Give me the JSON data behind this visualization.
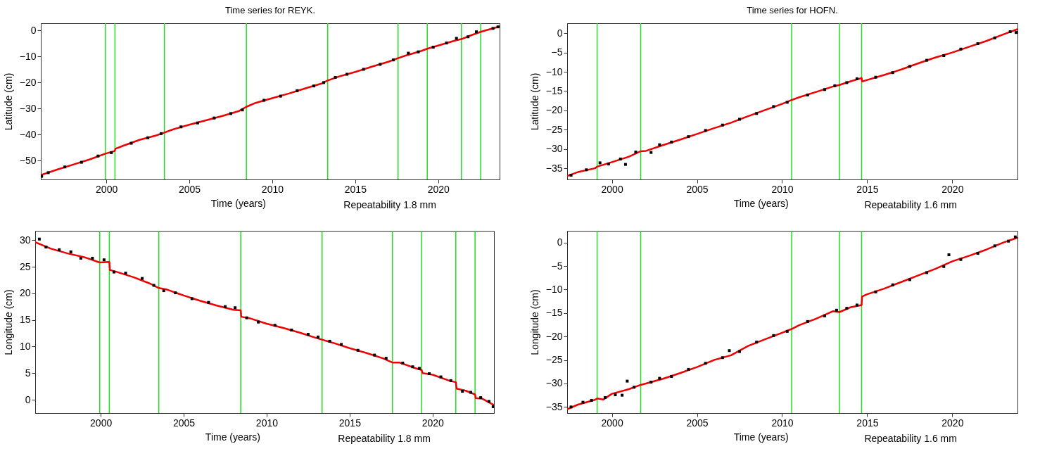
{
  "chart_data": [
    {
      "type": "scatter",
      "title": "Time series for REYK.",
      "xlabel": "Time (years)",
      "ylabel": "Latitude (cm)",
      "annotations": [
        "Repeatability 1.8 mm"
      ],
      "line_style": "solid",
      "xlim": [
        1996.05,
        2023.7
      ],
      "xticks": [
        2000,
        2005,
        2010,
        2015,
        2020
      ],
      "ylim": [
        -57.2,
        2.8
      ],
      "yticks": [
        -50,
        -40,
        -30,
        -20,
        -10,
        0
      ],
      "ref_lines": [
        {
          "axis": "x",
          "value": 1999.94,
          "color": "#22dd22"
        },
        {
          "axis": "x",
          "value": 2000.52,
          "color": "#22dd22"
        },
        {
          "axis": "x",
          "value": 2003.5,
          "color": "#22dd22"
        },
        {
          "axis": "x",
          "value": 2008.44,
          "color": "#22dd22"
        },
        {
          "axis": "x",
          "value": 2013.34,
          "color": "#22dd22"
        },
        {
          "axis": "x",
          "value": 2017.58,
          "color": "#22dd22"
        },
        {
          "axis": "x",
          "value": 2019.34,
          "color": "#22dd22"
        },
        {
          "axis": "x",
          "value": 2021.4,
          "color": "#22dd22"
        },
        {
          "axis": "x",
          "value": 2022.56,
          "color": "#22dd22"
        }
      ],
      "series": [
        {
          "type": "scatter",
          "marker": "square",
          "color": "#000000",
          "x": [
            1996.1,
            1996.5,
            1997.5,
            1998.5,
            1999.5,
            2000.3,
            2001.5,
            2002.5,
            2003.3,
            2004.5,
            2005.5,
            2006.5,
            2007.5,
            2008.2,
            2009.5,
            2010.5,
            2011.5,
            2012.5,
            2013.1,
            2013.8,
            2014.5,
            2015.5,
            2016.5,
            2017.3,
            2018.2,
            2018.8,
            2019.7,
            2020.5,
            2021.1,
            2021.8,
            2022.3,
            2023.3,
            2023.6
          ],
          "values": [
            -56.0,
            -54.6,
            -52.4,
            -50.6,
            -48.2,
            -46.9,
            -43.3,
            -41.2,
            -39.6,
            -37.0,
            -35.5,
            -33.6,
            -31.9,
            -30.5,
            -26.8,
            -25.2,
            -23.1,
            -21.3,
            -20.0,
            -18.0,
            -16.8,
            -14.9,
            -13.0,
            -11.3,
            -8.7,
            -8.2,
            -6.4,
            -4.8,
            -3.0,
            -2.4,
            -0.5,
            0.8,
            1.4
          ]
        },
        {
          "type": "line",
          "color": "#ee0000",
          "x": [
            1996.05,
            1997,
            1998,
            1999,
            1999.94,
            2000.5,
            2000.55,
            2001,
            2002,
            2003,
            2003.5,
            2004,
            2005,
            2006,
            2007,
            2008,
            2008.44,
            2009,
            2010,
            2011,
            2012,
            2013,
            2013.34,
            2014,
            2015,
            2016,
            2017,
            2017.58,
            2018,
            2019,
            2019.34,
            2020,
            2021,
            2021.4,
            2022,
            2022.56,
            2023,
            2023.7
          ],
          "values": [
            -55.5,
            -53.5,
            -51.5,
            -49.5,
            -47.3,
            -46.3,
            -45.4,
            -44.3,
            -42.0,
            -40.3,
            -39.2,
            -38.0,
            -36.2,
            -34.5,
            -32.8,
            -30.9,
            -29.3,
            -27.8,
            -26.0,
            -24.2,
            -22.2,
            -20.3,
            -19.2,
            -17.7,
            -15.9,
            -13.9,
            -12.0,
            -10.6,
            -9.7,
            -7.8,
            -7.0,
            -5.8,
            -3.9,
            -3.3,
            -1.8,
            -0.5,
            0.3,
            1.5
          ]
        }
      ]
    },
    {
      "type": "scatter",
      "title": "Time series for HOFN.",
      "xlabel": "Time (years)",
      "ylabel": "Latitude (cm)",
      "annotations": [
        "Repeatability 1.6 mm"
      ],
      "line_style": "solid",
      "xlim": [
        1997.37,
        2023.83
      ],
      "xticks": [
        2000,
        2005,
        2010,
        2015,
        2020
      ],
      "ylim": [
        -37.9,
        2.6
      ],
      "yticks": [
        -35,
        -30,
        -25,
        -20,
        -15,
        -10,
        -5,
        0
      ],
      "ref_lines": [
        {
          "axis": "x",
          "value": 1999.13,
          "color": "#22dd22"
        },
        {
          "axis": "x",
          "value": 2001.69,
          "color": "#22dd22"
        },
        {
          "axis": "x",
          "value": 2010.56,
          "color": "#22dd22"
        },
        {
          "axis": "x",
          "value": 2013.37,
          "color": "#22dd22"
        },
        {
          "axis": "x",
          "value": 2014.67,
          "color": "#22dd22"
        }
      ],
      "series": [
        {
          "type": "scatter",
          "marker": "square",
          "color": "#000000",
          "x": [
            1997.6,
            1998.5,
            1999.3,
            1999.8,
            2000.5,
            2000.8,
            2001.4,
            2002.3,
            2002.8,
            2003.5,
            2004.5,
            2005.5,
            2006.5,
            2007.5,
            2008.5,
            2009.5,
            2010.3,
            2011.5,
            2012.5,
            2013.1,
            2013.8,
            2014.4,
            2015.5,
            2016.5,
            2017.5,
            2018.5,
            2019.5,
            2020.5,
            2021.5,
            2022.5,
            2023.4,
            2023.75
          ],
          "values": [
            -36.8,
            -35.4,
            -33.6,
            -33.9,
            -32.6,
            -34.0,
            -30.8,
            -30.9,
            -28.9,
            -28.2,
            -26.8,
            -25.2,
            -23.8,
            -22.3,
            -20.8,
            -19.0,
            -17.9,
            -16.0,
            -14.6,
            -13.6,
            -12.8,
            -11.8,
            -11.4,
            -10.2,
            -8.6,
            -7.0,
            -5.8,
            -4.1,
            -2.7,
            -1.2,
            0.4,
            0.2
          ]
        },
        {
          "type": "line",
          "color": "#ee0000",
          "x": [
            1997.37,
            1998,
            1999,
            1999.13,
            2000,
            2001,
            2001.69,
            2002,
            2003,
            2004,
            2005,
            2006,
            2007,
            2008,
            2009,
            2010,
            2010.56,
            2011,
            2012,
            2013,
            2013.37,
            2014,
            2014.67,
            2014.7,
            2015,
            2016,
            2017,
            2018,
            2019,
            2020,
            2021,
            2022,
            2023,
            2023.8
          ],
          "values": [
            -37.0,
            -36.0,
            -35.0,
            -34.6,
            -33.4,
            -32.0,
            -30.6,
            -30.5,
            -29.0,
            -27.6,
            -26.1,
            -24.6,
            -23.2,
            -21.5,
            -19.9,
            -18.3,
            -17.3,
            -16.6,
            -15.2,
            -13.8,
            -13.4,
            -12.5,
            -11.6,
            -12.5,
            -12.1,
            -10.8,
            -9.4,
            -7.8,
            -6.3,
            -5.0,
            -3.5,
            -2.0,
            -0.3,
            1.0
          ]
        }
      ]
    },
    {
      "type": "scatter",
      "xlabel": "Time (years)",
      "ylabel": "Longitude (cm)",
      "annotations": [
        "Repeatability 1.8 mm"
      ],
      "line_style": "solid",
      "xlim": [
        1996.05,
        2023.7
      ],
      "xticks": [
        2000,
        2005,
        2010,
        2015,
        2020
      ],
      "ylim": [
        -2.5,
        31.75
      ],
      "yticks": [
        0,
        5,
        10,
        15,
        20,
        25,
        30
      ],
      "ref_lines": [
        {
          "axis": "x",
          "value": 1999.94,
          "color": "#22dd22"
        },
        {
          "axis": "x",
          "value": 2000.52,
          "color": "#22dd22"
        },
        {
          "axis": "x",
          "value": 2003.5,
          "color": "#22dd22"
        },
        {
          "axis": "x",
          "value": 2008.44,
          "color": "#22dd22"
        },
        {
          "axis": "x",
          "value": 2013.34,
          "color": "#22dd22"
        },
        {
          "axis": "x",
          "value": 2017.58,
          "color": "#22dd22"
        },
        {
          "axis": "x",
          "value": 2019.34,
          "color": "#22dd22"
        },
        {
          "axis": "x",
          "value": 2021.4,
          "color": "#22dd22"
        },
        {
          "axis": "x",
          "value": 2022.56,
          "color": "#22dd22"
        }
      ],
      "series": [
        {
          "type": "scatter",
          "marker": "square",
          "color": "#000000",
          "x": [
            1996.3,
            1996.7,
            1997.5,
            1998.2,
            1998.8,
            1999.5,
            2000.2,
            2000.8,
            2001.5,
            2002.5,
            2003.2,
            2003.8,
            2004.5,
            2005.5,
            2006.5,
            2007.5,
            2008.1,
            2008.8,
            2009.5,
            2010.5,
            2011.5,
            2012.5,
            2013.1,
            2013.8,
            2014.5,
            2015.5,
            2016.5,
            2017.2,
            2018.2,
            2018.8,
            2019.2,
            2019.8,
            2020.5,
            2021.1,
            2021.8,
            2022.3,
            2022.9,
            2023.4,
            2023.65
          ],
          "values": [
            30.2,
            28.7,
            28.2,
            27.8,
            26.6,
            26.6,
            26.3,
            24.0,
            23.8,
            22.8,
            21.5,
            20.5,
            20.1,
            19.0,
            18.3,
            17.5,
            17.3,
            15.4,
            14.6,
            14.0,
            13.1,
            12.3,
            11.8,
            11.0,
            10.4,
            9.3,
            8.4,
            7.8,
            6.9,
            6.2,
            5.9,
            4.9,
            4.3,
            3.6,
            1.6,
            1.4,
            0.4,
            -0.3,
            -1.3
          ]
        },
        {
          "type": "line",
          "color": "#ee0000",
          "x": [
            1996.05,
            1997,
            1998,
            1999,
            1999.94,
            2000.52,
            2000.55,
            2001,
            2002,
            2003,
            2003.5,
            2004,
            2005,
            2006,
            2007,
            2008,
            2008.44,
            2008.47,
            2009,
            2010,
            2011,
            2012,
            2013,
            2013.34,
            2014,
            2015,
            2016,
            2017,
            2017.58,
            2018,
            2019,
            2019.34,
            2019.4,
            2020,
            2021,
            2021.4,
            2021.45,
            2022,
            2022.56,
            2022.6,
            2023,
            2023.7
          ],
          "values": [
            29.6,
            28.4,
            27.5,
            26.8,
            25.8,
            25.9,
            24.4,
            24.0,
            23.0,
            21.8,
            21.0,
            20.7,
            19.6,
            18.6,
            17.7,
            16.9,
            16.8,
            15.6,
            15.3,
            14.3,
            13.5,
            12.6,
            11.6,
            11.3,
            10.7,
            9.7,
            8.8,
            7.8,
            7.0,
            7.0,
            5.9,
            5.6,
            5.0,
            4.7,
            3.6,
            3.3,
            2.1,
            1.7,
            1.0,
            0.3,
            0.2,
            -1.0
          ]
        }
      ]
    },
    {
      "type": "scatter",
      "xlabel": "Time (years)",
      "ylabel": "Longitude (cm)",
      "annotations": [
        "Repeatability 1.6 mm"
      ],
      "line_style": "solid",
      "xlim": [
        1997.37,
        2023.83
      ],
      "xticks": [
        2000,
        2005,
        2010,
        2015,
        2020
      ],
      "ylim": [
        -36.3,
        2.5
      ],
      "yticks": [
        -35,
        -30,
        -25,
        -20,
        -15,
        -10,
        -5,
        0
      ],
      "ref_lines": [
        {
          "axis": "x",
          "value": 1999.13,
          "color": "#22dd22"
        },
        {
          "axis": "x",
          "value": 2001.69,
          "color": "#22dd22"
        },
        {
          "axis": "x",
          "value": 2010.56,
          "color": "#22dd22"
        },
        {
          "axis": "x",
          "value": 2013.37,
          "color": "#22dd22"
        },
        {
          "axis": "x",
          "value": 2014.67,
          "color": "#22dd22"
        }
      ],
      "series": [
        {
          "type": "scatter",
          "marker": "square",
          "color": "#000000",
          "x": [
            1997.6,
            1998.3,
            1998.8,
            1999.6,
            2000.2,
            2000.6,
            2000.9,
            2001.3,
            2002.3,
            2002.8,
            2003.5,
            2004.5,
            2005.5,
            2006.5,
            2006.9,
            2007.5,
            2008.5,
            2009.5,
            2010.3,
            2011.5,
            2012.5,
            2013.2,
            2013.8,
            2014.4,
            2015.5,
            2016.5,
            2017.5,
            2018.5,
            2019.5,
            2019.8,
            2020.5,
            2021.5,
            2022.5,
            2023.3,
            2023.7
          ],
          "values": [
            -35.0,
            -34.0,
            -33.6,
            -33.0,
            -32.4,
            -32.5,
            -29.5,
            -30.8,
            -29.7,
            -28.9,
            -28.5,
            -27.0,
            -25.7,
            -24.5,
            -23.0,
            -23.2,
            -21.2,
            -19.8,
            -18.9,
            -16.8,
            -15.6,
            -14.4,
            -14.0,
            -13.3,
            -10.5,
            -9.0,
            -7.9,
            -6.4,
            -5.1,
            -2.6,
            -3.6,
            -2.3,
            -0.7,
            0.3,
            1.2
          ]
        },
        {
          "type": "line",
          "color": "#ee0000",
          "x": [
            1997.37,
            1998,
            1999,
            1999.13,
            1999.5,
            2000,
            2001,
            2001.69,
            2002,
            2003,
            2004,
            2005,
            2006,
            2007,
            2008,
            2009,
            2010,
            2010.56,
            2011,
            2012,
            2013,
            2013.37,
            2014,
            2014.67,
            2014.7,
            2015,
            2016,
            2017,
            2018,
            2019,
            2020,
            2021,
            2022,
            2023,
            2023.8
          ],
          "values": [
            -35.5,
            -34.5,
            -33.5,
            -33.2,
            -33.4,
            -32.2,
            -31.2,
            -30.3,
            -30.0,
            -29.0,
            -27.8,
            -26.5,
            -25.0,
            -24.0,
            -22.0,
            -20.6,
            -19.2,
            -18.4,
            -17.6,
            -16.2,
            -14.6,
            -14.8,
            -13.8,
            -13.3,
            -11.5,
            -11.0,
            -9.8,
            -8.4,
            -7.0,
            -5.6,
            -4.0,
            -2.8,
            -1.5,
            0.0,
            1.0
          ]
        }
      ]
    }
  ]
}
